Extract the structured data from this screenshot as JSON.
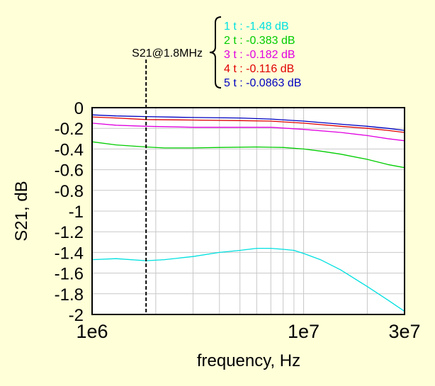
{
  "chart_data": {
    "type": "line",
    "xlabel": "frequency, Hz",
    "ylabel": "S21, dB",
    "xscale": "log",
    "xlim": [
      1000000,
      30000000
    ],
    "ylim": [
      -2,
      0
    ],
    "x_ticks": [
      {
        "value": 1000000,
        "label": "1e6"
      },
      {
        "value": 10000000,
        "label": "1e7"
      },
      {
        "value": 30000000,
        "label": "3e7"
      }
    ],
    "y_ticks": [
      {
        "value": 0,
        "label": "0"
      },
      {
        "value": -0.2,
        "label": "-0.2"
      },
      {
        "value": -0.4,
        "label": "-0.4"
      },
      {
        "value": -0.6,
        "label": "-0.6"
      },
      {
        "value": -0.8,
        "label": "-0.8"
      },
      {
        "value": -1,
        "label": "-1"
      },
      {
        "value": -1.2,
        "label": "-1.2"
      },
      {
        "value": -1.4,
        "label": "-1.4"
      },
      {
        "value": -1.6,
        "label": "-1.6"
      },
      {
        "value": -1.8,
        "label": "-1.8"
      },
      {
        "value": -2,
        "label": "-2"
      }
    ],
    "grid": true,
    "legend_position": "top-right, above plot",
    "marker": {
      "x": 1800000,
      "label": "S21@1.8MHz"
    },
    "series": [
      {
        "name": "1 t : -1.48 dB",
        "color": "#00e0e0",
        "x": [
          1000000,
          1300000,
          1800000,
          2200000,
          3000000,
          4000000,
          5000000,
          6000000,
          7000000,
          8000000,
          9000000,
          10000000,
          12000000,
          15000000,
          20000000,
          25000000,
          30000000
        ],
        "y": [
          -1.47,
          -1.46,
          -1.48,
          -1.47,
          -1.44,
          -1.4,
          -1.38,
          -1.36,
          -1.36,
          -1.37,
          -1.38,
          -1.41,
          -1.47,
          -1.57,
          -1.73,
          -1.86,
          -1.97
        ]
      },
      {
        "name": "2 t : -0.383 dB",
        "color": "#00cc00",
        "x": [
          1000000,
          1300000,
          1800000,
          2200000,
          3000000,
          4000000,
          6000000,
          8000000,
          10000000,
          12000000,
          15000000,
          20000000,
          25000000,
          30000000
        ],
        "y": [
          -0.33,
          -0.36,
          -0.38,
          -0.39,
          -0.39,
          -0.385,
          -0.38,
          -0.385,
          -0.4,
          -0.42,
          -0.45,
          -0.5,
          -0.55,
          -0.58
        ]
      },
      {
        "name": "3 t : -0.182 dB",
        "color": "#e000e0",
        "x": [
          1000000,
          1300000,
          1800000,
          3000000,
          5000000,
          7000000,
          10000000,
          15000000,
          20000000,
          25000000,
          30000000
        ],
        "y": [
          -0.15,
          -0.17,
          -0.18,
          -0.19,
          -0.19,
          -0.19,
          -0.21,
          -0.24,
          -0.27,
          -0.3,
          -0.32
        ]
      },
      {
        "name": "4 t : -0.116 dB",
        "color": "#e00000",
        "x": [
          1000000,
          1300000,
          1800000,
          3000000,
          5000000,
          7000000,
          10000000,
          15000000,
          20000000,
          25000000,
          30000000
        ],
        "y": [
          -0.09,
          -0.1,
          -0.115,
          -0.12,
          -0.125,
          -0.13,
          -0.15,
          -0.18,
          -0.2,
          -0.22,
          -0.24
        ]
      },
      {
        "name": "5 t : -0.0863 dB",
        "color": "#0000c0",
        "x": [
          1000000,
          1300000,
          1800000,
          3000000,
          5000000,
          7000000,
          10000000,
          15000000,
          20000000,
          25000000,
          30000000
        ],
        "y": [
          -0.07,
          -0.08,
          -0.086,
          -0.095,
          -0.1,
          -0.11,
          -0.13,
          -0.16,
          -0.18,
          -0.2,
          -0.22
        ]
      }
    ]
  }
}
